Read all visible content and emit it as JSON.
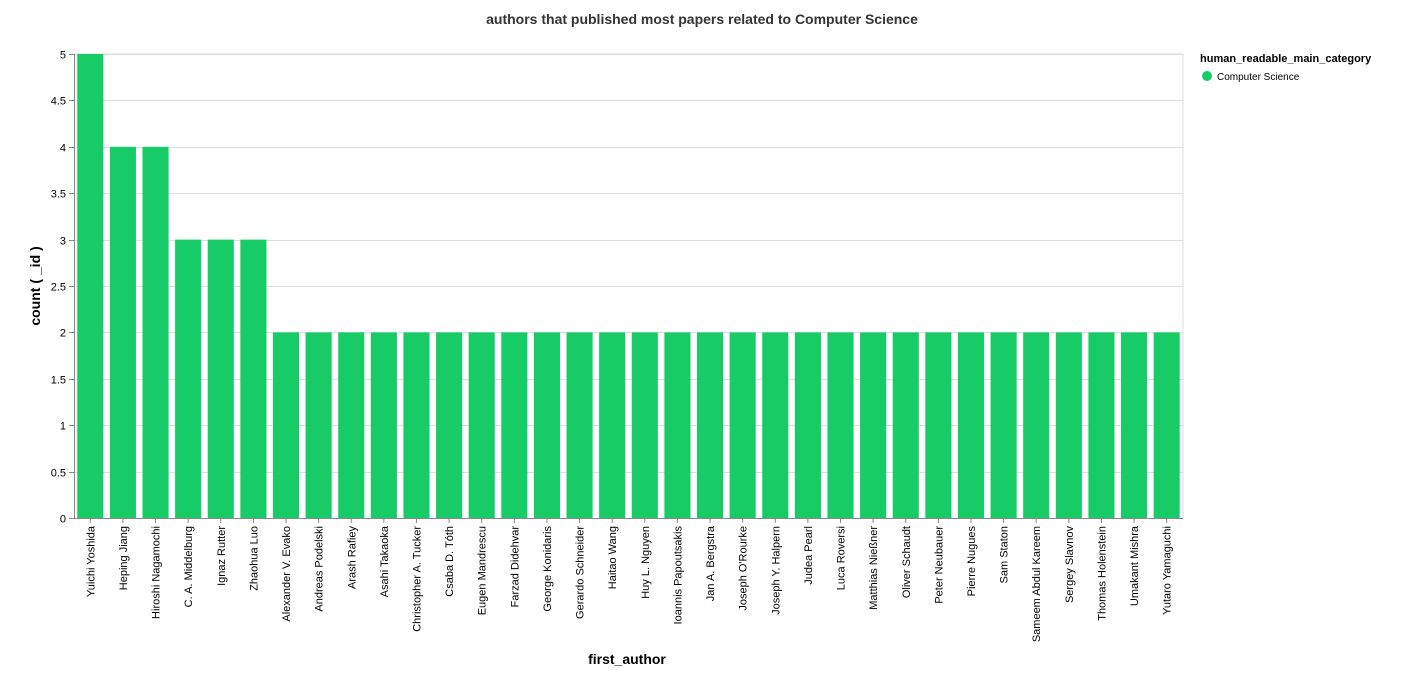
{
  "colors": {
    "bar": "#17cc67",
    "grid": "#dddddd",
    "axis": "#888888"
  },
  "chart_data": {
    "type": "bar",
    "title": "authors that published most papers related to Computer Science",
    "xlabel": "first_author",
    "ylabel": "count ( _id )",
    "ylim": [
      0,
      5
    ],
    "yticks": [
      "0",
      "0.5",
      "1",
      "1.5",
      "2",
      "2.5",
      "3",
      "3.5",
      "4",
      "4.5",
      "5"
    ],
    "grid": true,
    "legend_position": "right",
    "legend": {
      "title": "human_readable_main_category",
      "entries": [
        "Computer Science"
      ]
    },
    "categories": [
      "Yuichi Yoshida",
      "Heping Jiang",
      "Hiroshi Nagamochi",
      "C. A. Middelburg",
      "Ignaz Rutter",
      "Zhaohua Luo",
      "Alexander V. Evako",
      "Andreas Podelski",
      "Arash Rafiey",
      "Asahi Takaoka",
      "Christopher A. Tucker",
      "Csaba D. Tóth",
      "Eugen Mandrescu",
      "Farzad Didehvar",
      "George Konidaris",
      "Gerardo Schneider",
      "Haitao Wang",
      "Huy L. Nguyen",
      "Ioannis Papoutsakis",
      "Jan A. Bergstra",
      "Joseph O'Rourke",
      "Joseph Y. Halpern",
      "Judea Pearl",
      "Luca Roversi",
      "Matthias Nießner",
      "Oliver Schaudt",
      "Peter Neubauer",
      "Pierre Nugues",
      "Sam Staton",
      "Sameem Abdul Kareem",
      "Sergey Slavnov",
      "Thomas Holenstein",
      "Umakant Mishra",
      "Yutaro Yamaguchi"
    ],
    "series": [
      {
        "name": "Computer Science",
        "values": [
          5,
          4,
          4,
          3,
          3,
          3,
          2,
          2,
          2,
          2,
          2,
          2,
          2,
          2,
          2,
          2,
          2,
          2,
          2,
          2,
          2,
          2,
          2,
          2,
          2,
          2,
          2,
          2,
          2,
          2,
          2,
          2,
          2,
          2
        ]
      }
    ]
  }
}
